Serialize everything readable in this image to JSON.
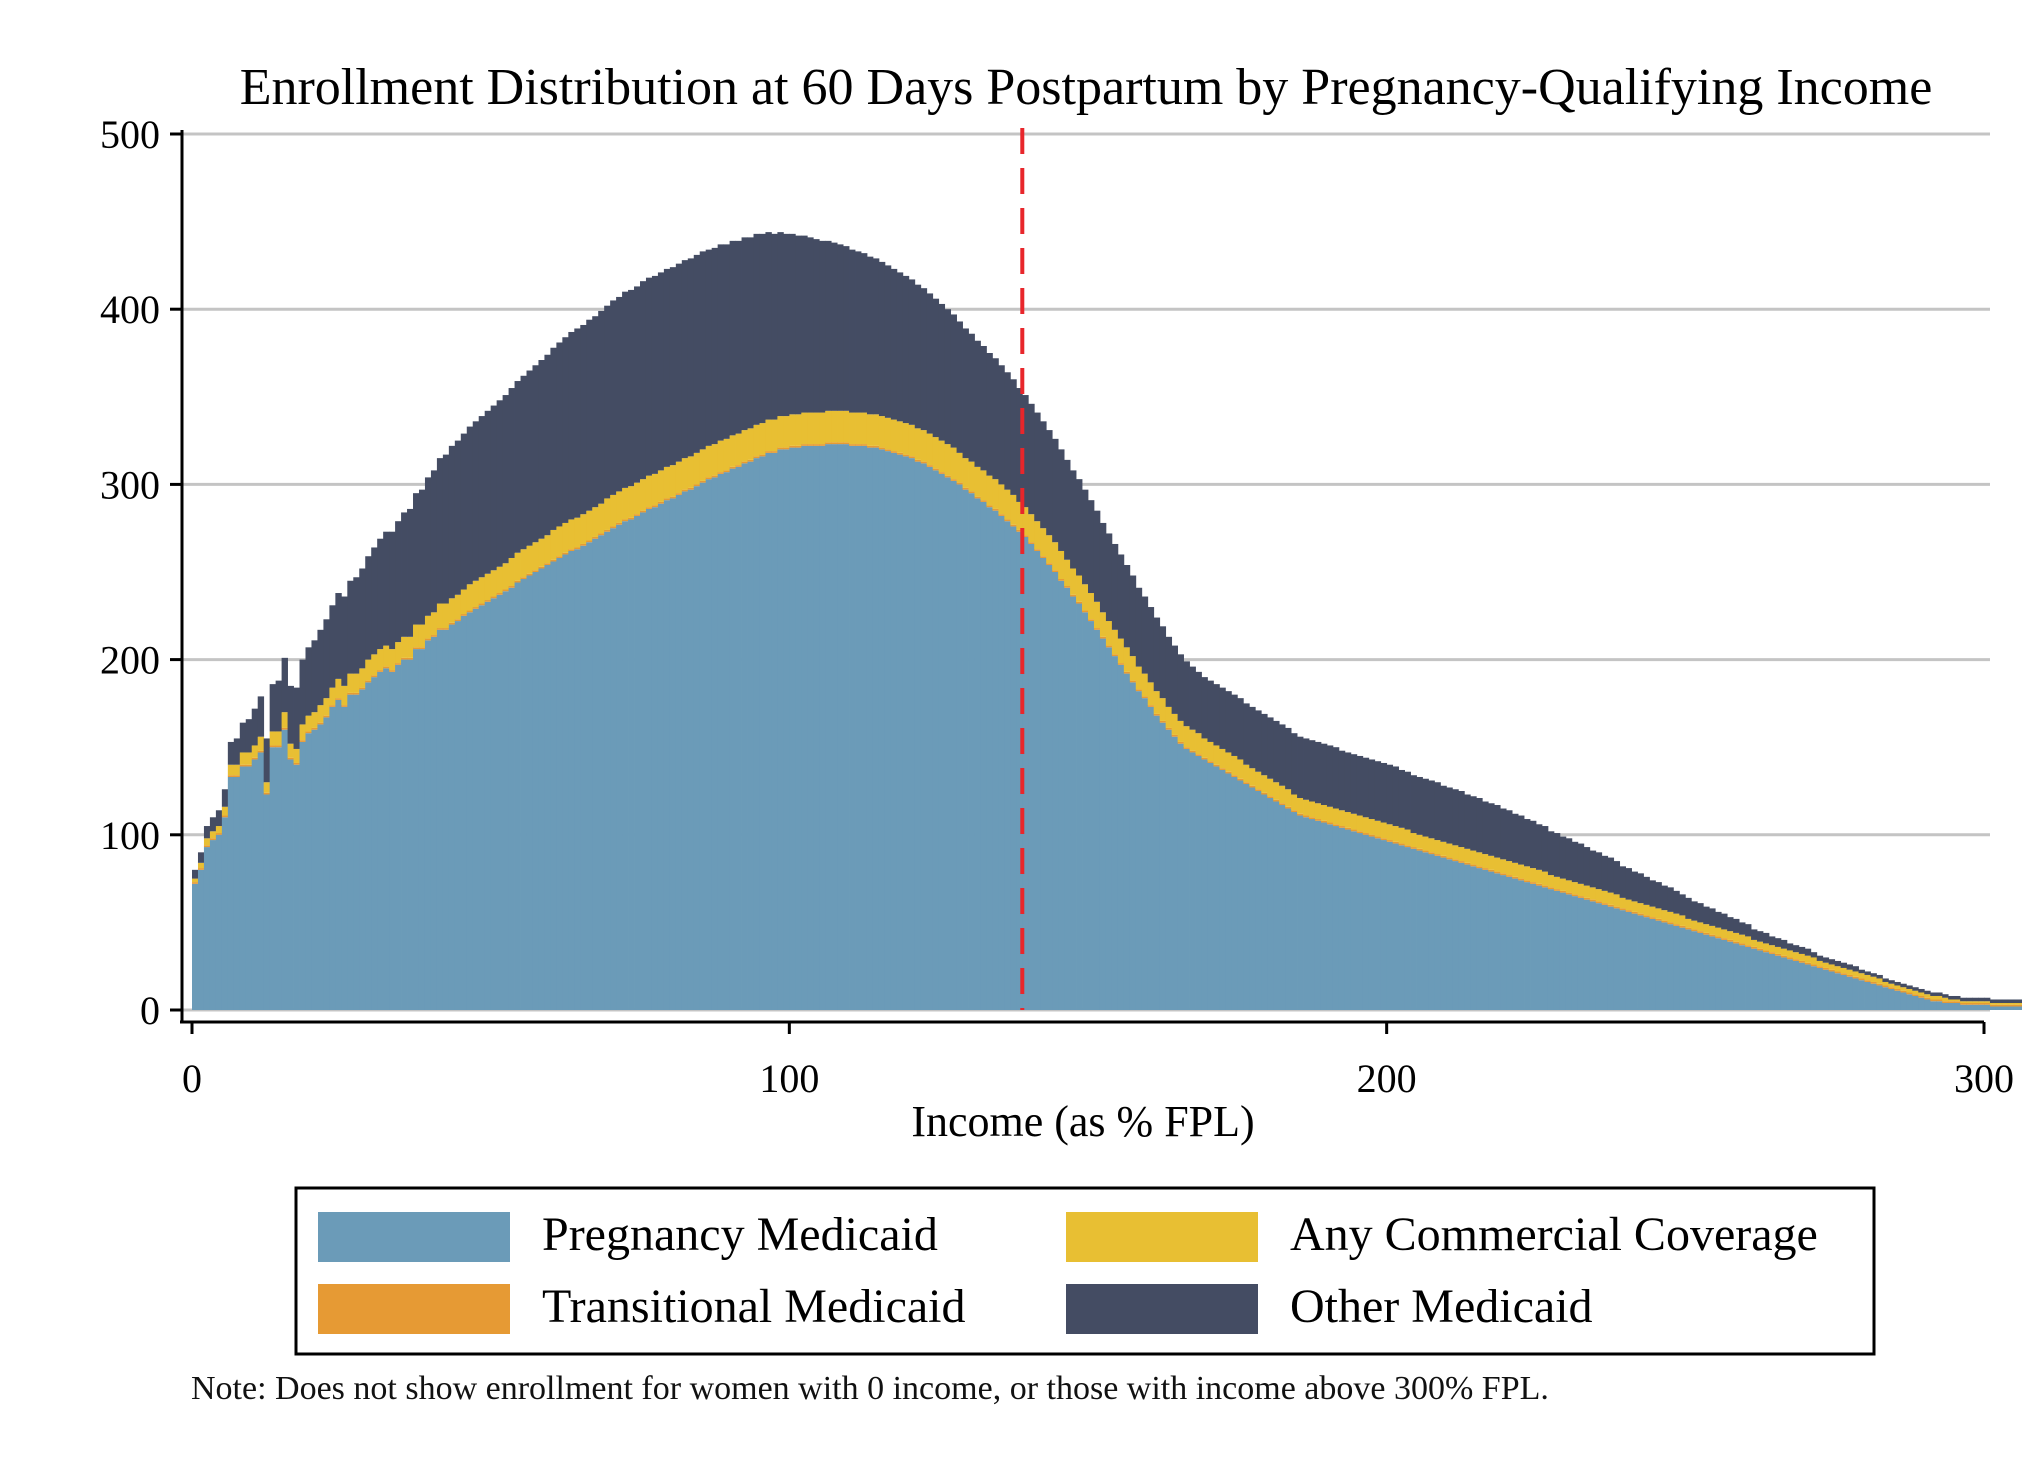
{
  "chart_data": {
    "type": "bar",
    "stacked": true,
    "title": "Enrollment Distribution at 60 Days Postpartum by Pregnancy-Qualifying Income",
    "xlabel": "Income (as % FPL)",
    "ylabel": "",
    "xlim": [
      0,
      300
    ],
    "ylim": [
      0,
      500
    ],
    "xticks": [
      "0",
      "100",
      "200",
      "300"
    ],
    "yticks": [
      "0",
      "100",
      "200",
      "300",
      "400",
      "500"
    ],
    "grid": true,
    "reference_line": {
      "x": 139,
      "color": "#e8262b",
      "style": "dashed"
    },
    "legend_position": "bottom",
    "colors": {
      "pregnancy_medicaid": "#6b9bb8",
      "transitional_medicaid": "#e69a34",
      "commercial": "#e8bf33",
      "other_medicaid": "#444c63"
    },
    "series_order": [
      "pregnancy_medicaid",
      "transitional_medicaid",
      "commercial",
      "other_medicaid"
    ],
    "legend": [
      {
        "key": "pregnancy_medicaid",
        "label": "Pregnancy Medicaid"
      },
      {
        "key": "commercial",
        "label": "Any Commercial Coverage"
      },
      {
        "key": "transitional_medicaid",
        "label": "Transitional Medicaid"
      },
      {
        "key": "other_medicaid",
        "label": "Other Medicaid"
      }
    ],
    "bin_width": 1,
    "x_start": 0,
    "note": "Note: Does not show enrollment for women with 0 income, or those with income above 300% FPL.",
    "pregnancy_medicaid": [
      72,
      80,
      93,
      97,
      100,
      110,
      133,
      133,
      139,
      139,
      143,
      147,
      123,
      150,
      150,
      160,
      143,
      140,
      153,
      158,
      160,
      163,
      167,
      173,
      177,
      173,
      180,
      180,
      183,
      187,
      190,
      193,
      195,
      193,
      197,
      200,
      200,
      206,
      206,
      211,
      213,
      217,
      217,
      220,
      222,
      225,
      227,
      229,
      231,
      233,
      235,
      237,
      239,
      241,
      244,
      246,
      248,
      250,
      252,
      254,
      256,
      258,
      260,
      262,
      263,
      265,
      267,
      269,
      271,
      273,
      275,
      277,
      279,
      280,
      282,
      284,
      286,
      287,
      289,
      291,
      292,
      294,
      296,
      297,
      299,
      301,
      303,
      304,
      306,
      307,
      309,
      310,
      312,
      313,
      315,
      316,
      318,
      318,
      320,
      320,
      321,
      321,
      322,
      322,
      322,
      322,
      323,
      323,
      323,
      323,
      322,
      322,
      322,
      321,
      321,
      320,
      319,
      318,
      317,
      316,
      315,
      313,
      312,
      310,
      308,
      306,
      304,
      302,
      300,
      297,
      295,
      292,
      290,
      287,
      285,
      282,
      279,
      276,
      273,
      270,
      266,
      262,
      258,
      254,
      250,
      245,
      241,
      236,
      232,
      227,
      222,
      217,
      212,
      207,
      202,
      197,
      192,
      187,
      182,
      178,
      173,
      168,
      164,
      160,
      156,
      152,
      149,
      147,
      145,
      143,
      141,
      139,
      137,
      135,
      133,
      131,
      129,
      127,
      125,
      123,
      121,
      119,
      117,
      115,
      113,
      111,
      110,
      109,
      108,
      107,
      106,
      105,
      104,
      103,
      102,
      101,
      100,
      99,
      98,
      97,
      96,
      95,
      94,
      93,
      92,
      91,
      90,
      89,
      88,
      87,
      86,
      85,
      84,
      83,
      82,
      81,
      80,
      79,
      78,
      77,
      76,
      75,
      74,
      73,
      72,
      71,
      70,
      69,
      68,
      67,
      66,
      65,
      64,
      63,
      62,
      61,
      60,
      59,
      58,
      57,
      56,
      55,
      54,
      53,
      52,
      51,
      50,
      49,
      48,
      47,
      46,
      45,
      44,
      43,
      42,
      41,
      40,
      39,
      38,
      37,
      36,
      35,
      34,
      33,
      32,
      31,
      30,
      29,
      28,
      27,
      26,
      25,
      24,
      23,
      22,
      21,
      20,
      19,
      18,
      17,
      16,
      15,
      14,
      13,
      12,
      11,
      10,
      9,
      8,
      7,
      6,
      5,
      5,
      4,
      4,
      4,
      3,
      3,
      3,
      3,
      3,
      2,
      2,
      2,
      2,
      2,
      2,
      2,
      2,
      2,
      2,
      2,
      2,
      2
    ],
    "commercial": [
      2,
      3,
      4,
      4,
      4,
      5,
      6,
      6,
      7,
      7,
      7,
      8,
      6,
      8,
      8,
      9,
      8,
      8,
      9,
      9,
      9,
      10,
      10,
      10,
      11,
      11,
      11,
      11,
      11,
      12,
      12,
      12,
      12,
      12,
      12,
      12,
      12,
      13,
      13,
      13,
      13,
      14,
      14,
      14,
      14,
      14,
      15,
      15,
      15,
      15,
      15,
      15,
      15,
      16,
      16,
      16,
      16,
      16,
      16,
      16,
      17,
      17,
      17,
      17,
      17,
      17,
      17,
      17,
      17,
      18,
      18,
      18,
      18,
      18,
      18,
      18,
      18,
      18,
      18,
      18,
      18,
      18,
      18,
      18,
      18,
      18,
      18,
      18,
      18,
      18,
      18,
      18,
      18,
      18,
      18,
      18,
      18,
      18,
      18,
      18,
      18,
      18,
      18,
      18,
      18,
      18,
      18,
      18,
      18,
      18,
      18,
      18,
      18,
      18,
      18,
      18,
      18,
      18,
      18,
      18,
      18,
      18,
      18,
      18,
      18,
      18,
      18,
      18,
      17,
      17,
      17,
      17,
      17,
      17,
      17,
      17,
      17,
      17,
      16,
      16,
      16,
      16,
      16,
      16,
      16,
      16,
      15,
      15,
      15,
      15,
      15,
      15,
      14,
      14,
      14,
      14,
      14,
      14,
      13,
      13,
      13,
      13,
      13,
      12,
      12,
      12,
      12,
      12,
      12,
      11,
      11,
      11,
      11,
      11,
      11,
      11,
      10,
      10,
      10,
      10,
      10,
      10,
      10,
      10,
      9,
      9,
      9,
      9,
      9,
      9,
      9,
      9,
      9,
      9,
      9,
      9,
      9,
      9,
      9,
      9,
      9,
      9,
      9,
      9,
      8,
      8,
      8,
      8,
      8,
      8,
      8,
      8,
      8,
      8,
      8,
      8,
      8,
      8,
      8,
      8,
      8,
      8,
      8,
      8,
      8,
      8,
      8,
      7,
      7,
      7,
      7,
      7,
      7,
      7,
      7,
      7,
      7,
      7,
      7,
      6,
      6,
      6,
      6,
      6,
      6,
      6,
      6,
      6,
      6,
      6,
      5,
      5,
      5,
      5,
      5,
      5,
      5,
      5,
      5,
      5,
      5,
      4,
      4,
      4,
      4,
      4,
      4,
      4,
      4,
      4,
      4,
      4,
      3,
      3,
      3,
      3,
      3,
      3,
      3,
      3,
      3,
      3,
      3,
      2,
      2,
      2,
      2,
      2,
      2,
      2,
      2,
      2,
      2,
      2,
      1,
      1,
      1,
      1,
      1,
      1,
      1,
      1,
      1,
      1,
      1,
      1,
      1,
      1
    ],
    "transitional_medicaid": [
      1,
      1,
      1,
      1,
      1,
      1,
      1,
      1,
      1,
      1,
      1,
      1,
      1,
      1,
      1,
      1,
      1,
      1,
      1,
      1,
      1,
      1,
      1,
      1,
      1,
      1,
      1,
      1,
      1,
      1,
      1,
      1,
      1,
      1,
      1,
      1,
      1,
      1,
      1,
      1,
      1,
      1,
      1,
      1,
      1,
      1,
      1,
      1,
      1,
      1,
      1,
      1,
      1,
      1,
      1,
      1,
      1,
      1,
      1,
      1,
      1,
      1,
      1,
      1,
      1,
      1,
      1,
      1,
      1,
      1,
      1,
      1,
      1,
      1,
      1,
      1,
      1,
      1,
      1,
      1,
      1,
      1,
      1,
      1,
      1,
      1,
      1,
      1,
      1,
      1,
      1,
      1,
      1,
      1,
      1,
      1,
      1,
      1,
      1,
      1,
      1,
      1,
      1,
      1,
      1,
      1,
      1,
      1,
      1,
      1,
      1,
      1,
      1,
      1,
      1,
      1,
      1,
      1,
      1,
      1,
      1,
      1,
      1,
      1,
      1,
      1,
      1,
      1,
      1,
      1,
      1,
      1,
      1,
      1,
      1,
      1,
      1,
      1,
      1,
      1,
      1,
      1,
      1,
      1,
      1,
      1,
      1,
      1,
      1,
      1,
      1,
      1,
      1,
      1,
      1,
      1,
      1,
      1,
      1,
      1,
      1,
      1,
      1,
      1,
      1,
      1,
      1,
      1,
      1,
      1,
      1,
      1,
      1,
      1,
      1,
      1,
      1,
      1,
      1,
      1,
      1,
      1,
      1,
      1,
      1,
      1,
      1,
      1,
      1,
      1,
      1,
      1,
      1,
      1,
      1,
      1,
      1,
      1,
      1,
      1,
      1,
      1,
      1,
      1,
      1,
      1,
      1,
      1,
      1,
      1,
      1,
      1,
      1,
      1,
      1,
      1,
      1,
      1,
      1,
      1,
      1,
      1,
      1,
      1,
      1,
      1,
      1,
      1,
      1,
      1,
      1,
      1,
      1,
      1,
      1,
      1,
      1,
      1,
      1,
      1,
      1,
      1,
      1,
      1,
      1,
      1,
      1,
      1,
      1,
      1,
      1,
      1,
      1,
      1,
      1,
      1,
      1,
      1,
      1,
      1,
      1,
      1,
      1,
      1,
      1,
      1,
      1,
      1,
      1,
      1,
      1,
      1,
      1,
      1,
      1,
      1,
      1,
      1,
      1,
      1,
      1,
      1,
      1,
      1,
      1,
      1,
      1,
      1,
      1,
      1,
      1,
      1,
      1,
      1,
      1,
      1,
      1,
      1,
      1,
      1,
      1,
      1,
      1,
      1,
      1,
      1,
      1,
      1,
      1,
      1,
      1,
      1,
      1,
      1,
      1,
      1
    ],
    "other_medicaid": [
      5,
      6,
      7,
      8,
      9,
      10,
      13,
      15,
      17,
      19,
      21,
      23,
      25,
      27,
      29,
      31,
      33,
      35,
      37,
      39,
      41,
      43,
      45,
      47,
      49,
      51,
      53,
      55,
      57,
      59,
      61,
      63,
      65,
      67,
      69,
      71,
      73,
      75,
      77,
      79,
      81,
      83,
      85,
      87,
      88,
      89,
      90,
      91,
      92,
      93,
      94,
      95,
      96,
      97,
      98,
      99,
      100,
      101,
      102,
      103,
      104,
      105,
      106,
      107,
      108,
      108,
      109,
      109,
      110,
      110,
      111,
      111,
      112,
      112,
      112,
      113,
      113,
      113,
      113,
      113,
      113,
      113,
      113,
      113,
      113,
      113,
      112,
      112,
      112,
      111,
      111,
      110,
      110,
      109,
      109,
      108,
      107,
      106,
      105,
      104,
      103,
      102,
      101,
      100,
      99,
      98,
      97,
      96,
      95,
      94,
      93,
      92,
      91,
      90,
      89,
      88,
      87,
      86,
      85,
      84,
      83,
      82,
      81,
      80,
      79,
      78,
      77,
      76,
      75,
      74,
      73,
      72,
      71,
      70,
      69,
      68,
      67,
      66,
      65,
      64,
      63,
      62,
      61,
      60,
      59,
      58,
      57,
      56,
      55,
      54,
      53,
      52,
      51,
      50,
      49,
      48,
      47,
      46,
      45,
      44,
      43,
      42,
      41,
      40,
      39,
      38,
      37,
      36,
      35,
      35,
      35,
      35,
      35,
      35,
      35,
      35,
      35,
      35,
      35,
      35,
      35,
      35,
      35,
      35,
      35,
      35,
      35,
      35,
      35,
      35,
      35,
      35,
      34,
      34,
      34,
      34,
      34,
      34,
      34,
      34,
      34,
      34,
      33,
      33,
      33,
      33,
      33,
      33,
      33,
      32,
      32,
      32,
      32,
      31,
      31,
      31,
      30,
      30,
      30,
      29,
      29,
      28,
      28,
      27,
      27,
      26,
      26,
      25,
      25,
      24,
      24,
      23,
      23,
      22,
      21,
      21,
      20,
      20,
      19,
      18,
      18,
      17,
      17,
      16,
      15,
      15,
      14,
      14,
      13,
      12,
      12,
      11,
      11,
      10,
      10,
      9,
      9,
      8,
      8,
      7,
      7,
      6,
      6,
      6,
      5,
      5,
      5,
      4,
      4,
      4,
      4,
      3,
      3,
      3,
      3,
      3,
      3,
      3,
      3,
      2,
      2,
      2,
      2,
      2,
      2,
      2,
      2,
      2,
      2,
      2,
      2,
      2,
      2,
      2,
      2,
      2,
      2,
      2,
      2,
      2,
      2,
      2,
      2,
      2,
      2,
      2,
      2,
      2,
      2,
      2,
      2,
      2,
      2,
      2,
      2,
      2,
      2,
      2,
      2,
      2,
      2,
      2,
      2,
      2,
      2,
      2,
      2,
      2,
      2,
      2,
      2,
      2,
      2,
      2
    ]
  }
}
